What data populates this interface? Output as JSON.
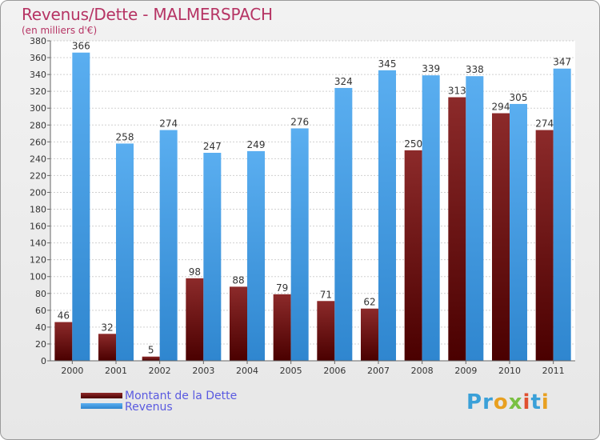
{
  "title": "Revenus/Dette - MALMERSPACH",
  "subtitle": "(en milliers d'€)",
  "logo_text": "Proxiti",
  "colors": {
    "dette": "#6b0f0f",
    "revenus": "#4ba3e8",
    "title": "#b63464",
    "legend_text": "#5a5ae0"
  },
  "legend": [
    {
      "label": "Montant de la Dette",
      "color": "#6b0f0f"
    },
    {
      "label": "Revenus",
      "color": "#4ba3e8"
    }
  ],
  "chart_data": {
    "type": "bar",
    "title": "Revenus/Dette - MALMERSPACH",
    "subtitle": "(en milliers d'€)",
    "categories": [
      "2000",
      "2001",
      "2002",
      "2003",
      "2004",
      "2005",
      "2006",
      "2007",
      "2008",
      "2009",
      "2010",
      "2011"
    ],
    "series": [
      {
        "name": "Montant de la Dette",
        "values": [
          46,
          32,
          5,
          98,
          88,
          79,
          71,
          62,
          250,
          313,
          294,
          274
        ]
      },
      {
        "name": "Revenus",
        "values": [
          366,
          258,
          274,
          247,
          249,
          276,
          324,
          345,
          339,
          338,
          305,
          347
        ]
      }
    ],
    "ylim": [
      0,
      380
    ],
    "yticks": [
      0,
      20,
      40,
      60,
      80,
      100,
      120,
      140,
      160,
      180,
      200,
      220,
      240,
      260,
      280,
      300,
      320,
      340,
      360,
      380
    ],
    "grid": true,
    "legend_position": "bottom-left"
  }
}
